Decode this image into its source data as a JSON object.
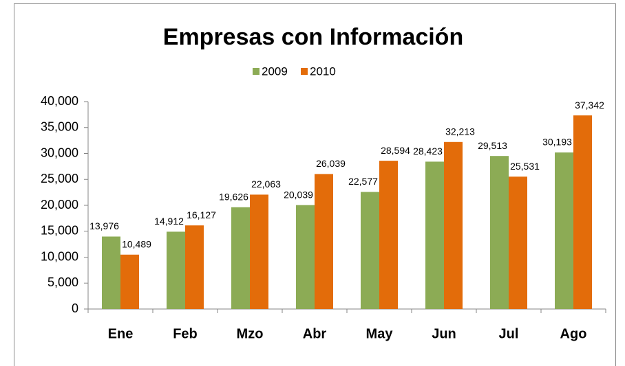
{
  "chart_data": {
    "type": "bar",
    "title": "Empresas con Información",
    "categories": [
      "Ene",
      "Feb",
      "Mzo",
      "Abr",
      "May",
      "Jun",
      "Jul",
      "Ago"
    ],
    "series": [
      {
        "name": "2009",
        "color": "#8cab55",
        "values": [
          13976,
          14912,
          19626,
          20039,
          22577,
          28423,
          29513,
          30193
        ],
        "value_labels": [
          "13,976",
          "14,912",
          "19,626",
          "20,039",
          "22,577",
          "28,423",
          "29,513",
          "30,193"
        ]
      },
      {
        "name": "2010",
        "color": "#e36c0a",
        "values": [
          10489,
          16127,
          22063,
          26039,
          28594,
          32213,
          25531,
          37342
        ],
        "value_labels": [
          "10,489",
          "16,127",
          "22,063",
          "26,039",
          "28,594",
          "32,213",
          "25,531",
          "37,342"
        ]
      }
    ],
    "ylim": [
      0,
      40000
    ],
    "yticks": [
      0,
      {
        "value": 5000,
        "label": "5,000"
      },
      {
        "value": 10000,
        "label": "10,000"
      },
      {
        "value": 15000,
        "label": "15,000"
      },
      {
        "value": 20000,
        "label": "20,000"
      },
      {
        "value": 25000,
        "label": "25,000"
      },
      {
        "value": 30000,
        "label": "30,000"
      },
      {
        "value": 35000,
        "label": "35,000"
      },
      {
        "value": 40000,
        "label": "40,000"
      }
    ],
    "grid": false,
    "legend": "top"
  }
}
